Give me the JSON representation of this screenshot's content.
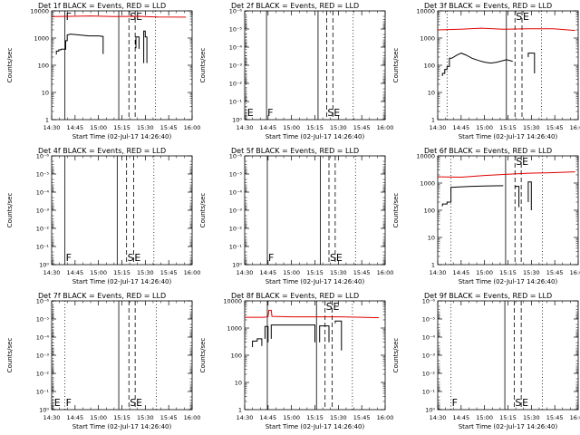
{
  "figure": {
    "xtick_labels": [
      "14:30",
      "14:45",
      "15:00",
      "15:15",
      "15:30",
      "15:45",
      "16:00"
    ],
    "xlabel": "Start Time (02-Jul-17 14:26:40)",
    "ylabel": "Counts/sec",
    "colors": {
      "events": "#000000",
      "lld": "#e00000",
      "axes": "#000000",
      "background": "#ffffff"
    }
  },
  "chart_data": [
    {
      "type": "line",
      "title": "Det 1f BLACK = Events, RED = LLD",
      "x_unit": "minutes after 14:30",
      "xlim": [
        0,
        90
      ],
      "yscale": "log",
      "ylim": [
        1,
        10000
      ],
      "ytick_labels": [
        "1",
        "10",
        "100",
        "1000",
        "10000"
      ],
      "series": [
        {
          "name": "LLD",
          "color": "#e00000",
          "points": [
            [
              0,
              6200
            ],
            [
              12,
              6300
            ],
            [
              25,
              6500
            ],
            [
              40,
              6200
            ],
            [
              55,
              6300
            ],
            [
              68,
              6000
            ],
            [
              86,
              5900
            ]
          ]
        },
        {
          "name": "Events",
          "color": "#000000",
          "segments": [
            [
              [
                3,
                250
              ],
              [
                3,
                330
              ],
              [
                4.5,
                330
              ],
              [
                4.5,
                370
              ],
              [
                6,
                370
              ],
              [
                6,
                390
              ],
              [
                9,
                390
              ],
              [
                9,
                800
              ],
              [
                10,
                800
              ],
              [
                10,
                1300
              ],
              [
                12,
                1400
              ],
              [
                18,
                1300
              ],
              [
                24,
                1200
              ],
              [
                30,
                1200
              ],
              [
                33,
                1150
              ],
              [
                33,
                260
              ]
            ],
            [
              [
                54,
                420
              ],
              [
                54,
                1100
              ],
              [
                56,
                1100
              ],
              [
                56,
                400
              ]
            ],
            [
              [
                59,
                120
              ],
              [
                59,
                1800
              ],
              [
                60,
                1800
              ],
              [
                60,
                1100
              ],
              [
                61,
                1100
              ],
              [
                61,
                120
              ]
            ]
          ]
        }
      ],
      "vlines": [
        {
          "x": 8.5,
          "style": "solid",
          "label": "F"
        },
        {
          "x": 43,
          "style": "solid",
          "label": ""
        },
        {
          "x": 49.5,
          "style": "dashed",
          "label": "S"
        },
        {
          "x": 53.5,
          "style": "dashed",
          "label": "E"
        },
        {
          "x": 66.5,
          "style": "dotted",
          "label": ""
        }
      ]
    },
    {
      "type": "line",
      "title": "Det 2f BLACK = Events, RED = LLD",
      "x_unit": "minutes after 14:30",
      "xlim": [
        0,
        90
      ],
      "yscale": "log",
      "ylim": [
        1,
        1e-06
      ],
      "ytick_labels": [
        "10⁰",
        "10⁻¹",
        "10⁻²",
        "10⁻³",
        "10⁻⁴",
        "10⁻⁵",
        "10⁻⁶"
      ],
      "series": [],
      "vlines": [
        {
          "x": 1,
          "style": "dotted",
          "label": "E"
        },
        {
          "x": 14,
          "style": "solid",
          "label": "F"
        },
        {
          "x": 47,
          "style": "solid",
          "label": ""
        },
        {
          "x": 52.5,
          "style": "dashed",
          "label": "S"
        },
        {
          "x": 56.5,
          "style": "dashed",
          "label": "E"
        },
        {
          "x": 69.5,
          "style": "dotted",
          "label": ""
        }
      ]
    },
    {
      "type": "line",
      "title": "Det 3f BLACK = Events, RED = LLD",
      "x_unit": "minutes after 14:30",
      "xlim": [
        0,
        90
      ],
      "yscale": "log",
      "ylim": [
        1,
        10000
      ],
      "ytick_labels": [
        "1",
        "10",
        "100",
        "1000",
        "10000"
      ],
      "series": [
        {
          "name": "LLD",
          "color": "#e00000",
          "points": [
            [
              0,
              2000
            ],
            [
              14,
              2100
            ],
            [
              28,
              2300
            ],
            [
              42,
              2100
            ],
            [
              58,
              2200
            ],
            [
              74,
              2200
            ],
            [
              88,
              1900
            ]
          ]
        },
        {
          "name": "Events",
          "color": "#000000",
          "segments": [
            [
              [
                3,
                40
              ],
              [
                3,
                50
              ],
              [
                4.5,
                50
              ],
              [
                4.5,
                70
              ],
              [
                6,
                70
              ],
              [
                6,
                90
              ],
              [
                7.5,
                90
              ],
              [
                7.5,
                180
              ],
              [
                9,
                180
              ],
              [
                12,
                230
              ],
              [
                15,
                280
              ],
              [
                18,
                240
              ],
              [
                22,
                180
              ],
              [
                26,
                150
              ],
              [
                30,
                130
              ],
              [
                34,
                120
              ],
              [
                38,
                130
              ],
              [
                44,
                160
              ],
              [
                48,
                140
              ]
            ],
            [
              [
                58,
                200
              ],
              [
                58,
                280
              ],
              [
                62,
                280
              ],
              [
                62,
                50
              ]
            ]
          ]
        }
      ],
      "vlines": [
        {
          "x": 6,
          "style": "dotted",
          "label": ""
        },
        {
          "x": 44,
          "style": "solid",
          "label": ""
        },
        {
          "x": 49.5,
          "style": "dashed",
          "label": "S"
        },
        {
          "x": 54,
          "style": "dashed",
          "label": "E"
        },
        {
          "x": 66.5,
          "style": "dotted",
          "label": ""
        }
      ]
    },
    {
      "type": "line",
      "title": "Det 4f BLACK = Events, RED = LLD",
      "x_unit": "minutes after 14:30",
      "xlim": [
        0,
        90
      ],
      "yscale": "log",
      "ylim": [
        1,
        1e-06
      ],
      "ytick_labels": [
        "10⁰",
        "10⁻¹",
        "10⁻²",
        "10⁻³",
        "10⁻⁴",
        "10⁻⁵",
        "10⁻⁶"
      ],
      "series": [],
      "vlines": [
        {
          "x": 8.5,
          "style": "solid",
          "label": "F"
        },
        {
          "x": 42,
          "style": "solid",
          "label": ""
        },
        {
          "x": 48,
          "style": "dashed",
          "label": "S"
        },
        {
          "x": 52.5,
          "style": "dashed",
          "label": "E"
        },
        {
          "x": 65.5,
          "style": "dotted",
          "label": ""
        }
      ]
    },
    {
      "type": "line",
      "title": "Det 5f BLACK = Events, RED = LLD",
      "x_unit": "minutes after 14:30",
      "xlim": [
        0,
        90
      ],
      "yscale": "log",
      "ylim": [
        1,
        1e-06
      ],
      "ytick_labels": [
        "10⁰",
        "10⁻¹",
        "10⁻²",
        "10⁻³",
        "10⁻⁴",
        "10⁻⁵",
        "10⁻⁶"
      ],
      "series": [],
      "vlines": [
        {
          "x": 14.5,
          "style": "solid",
          "label": "F"
        },
        {
          "x": 48.5,
          "style": "solid",
          "label": ""
        },
        {
          "x": 54,
          "style": "dashed",
          "label": "S"
        },
        {
          "x": 58,
          "style": "dashed",
          "label": "E"
        },
        {
          "x": 71,
          "style": "dotted",
          "label": ""
        }
      ]
    },
    {
      "type": "line",
      "title": "Det 6f BLACK = Events, RED = LLD",
      "x_unit": "minutes after 14:30",
      "xlim": [
        0,
        90
      ],
      "yscale": "log",
      "ylim": [
        1,
        10000
      ],
      "ytick_labels": [
        "1",
        "10",
        "100",
        "1000",
        "10000"
      ],
      "series": [
        {
          "name": "LLD",
          "color": "#e00000",
          "points": [
            [
              0,
              1700
            ],
            [
              15,
              1650
            ],
            [
              30,
              1900
            ],
            [
              45,
              2100
            ],
            [
              58,
              2300
            ],
            [
              72,
              2400
            ],
            [
              88,
              2600
            ]
          ]
        },
        {
          "name": "Events",
          "color": "#000000",
          "segments": [
            [
              [
                3,
                140
              ],
              [
                3,
                170
              ],
              [
                6,
                170
              ],
              [
                6,
                200
              ],
              [
                8.5,
                200
              ],
              [
                8.5,
                700
              ],
              [
                10,
                700
              ],
              [
                20,
                750
              ],
              [
                30,
                780
              ],
              [
                42,
                800
              ]
            ],
            [
              [
                50,
                700
              ],
              [
                50,
                760
              ],
              [
                52,
                760
              ],
              [
                52,
                130
              ]
            ],
            [
              [
                58,
                200
              ],
              [
                58,
                1100
              ],
              [
                60,
                1100
              ],
              [
                60,
                100
              ]
            ]
          ]
        }
      ],
      "vlines": [
        {
          "x": 8.5,
          "style": "dotted",
          "label": ""
        },
        {
          "x": 43.5,
          "style": "solid",
          "label": ""
        },
        {
          "x": 49.5,
          "style": "dashed",
          "label": "S"
        },
        {
          "x": 53.5,
          "style": "dashed",
          "label": "E"
        },
        {
          "x": 67,
          "style": "dotted",
          "label": ""
        }
      ]
    },
    {
      "type": "line",
      "title": "Det 7f BLACK = Events, RED = LLD",
      "x_unit": "minutes after 14:30",
      "xlim": [
        0,
        90
      ],
      "yscale": "log",
      "ylim": [
        1,
        1e-06
      ],
      "ytick_labels": [
        "10⁰",
        "10⁻¹",
        "10⁻²",
        "10⁻³",
        "10⁻⁴",
        "10⁻⁵",
        "10⁻⁶"
      ],
      "series": [],
      "vlines": [
        {
          "x": 1,
          "style": "dotted",
          "label": "E"
        },
        {
          "x": 8.5,
          "style": "dotted",
          "label": "F"
        },
        {
          "x": 43,
          "style": "solid",
          "label": ""
        },
        {
          "x": 49.5,
          "style": "dashed",
          "label": "S"
        },
        {
          "x": 53.5,
          "style": "dashed",
          "label": "E"
        },
        {
          "x": 67,
          "style": "dotted",
          "label": ""
        }
      ]
    },
    {
      "type": "line",
      "title": "Det 8f BLACK = Events, RED = LLD",
      "x_unit": "minutes after 14:30",
      "xlim": [
        0,
        90
      ],
      "yscale": "log",
      "ylim": [
        1,
        10000
      ],
      "ytick_labels": [
        "1",
        "10",
        "100",
        "1000",
        "10000"
      ],
      "series": [
        {
          "name": "LLD",
          "color": "#e00000",
          "points": [
            [
              0,
              2500
            ],
            [
              12,
              2500
            ],
            [
              15,
              2600
            ],
            [
              15.5,
              4500
            ],
            [
              17,
              4500
            ],
            [
              17.5,
              2700
            ],
            [
              30,
              2600
            ],
            [
              45,
              2600
            ],
            [
              60,
              2600
            ],
            [
              75,
              2500
            ],
            [
              86,
              2400
            ]
          ]
        },
        {
          "name": "Events",
          "color": "#000000",
          "segments": [
            [
              [
                5,
                200
              ],
              [
                5,
                330
              ],
              [
                8,
                330
              ],
              [
                8,
                400
              ],
              [
                11,
                400
              ],
              [
                11,
                220
              ]
            ],
            [
              [
                13,
                400
              ],
              [
                13,
                1150
              ],
              [
                15,
                1150
              ],
              [
                15,
                300
              ]
            ],
            [
              [
                17,
                400
              ],
              [
                17,
                1300
              ],
              [
                30,
                1300
              ],
              [
                45,
                1300
              ],
              [
                45,
                300
              ]
            ],
            [
              [
                48,
                300
              ],
              [
                48,
                1200
              ],
              [
                54,
                1200
              ],
              [
                54,
                300
              ]
            ],
            [
              [
                58,
                1500
              ],
              [
                58,
                1800
              ],
              [
                62,
                1800
              ],
              [
                62,
                150
              ]
            ]
          ]
        }
      ],
      "vlines": [
        {
          "x": 14.5,
          "style": "solid",
          "label": ""
        },
        {
          "x": 46,
          "style": "solid",
          "label": ""
        },
        {
          "x": 51.5,
          "style": "dashed",
          "label": "S"
        },
        {
          "x": 56,
          "style": "dashed",
          "label": "E"
        },
        {
          "x": 69,
          "style": "dotted",
          "label": ""
        }
      ]
    },
    {
      "type": "line",
      "title": "Det 9f BLACK = Events, RED = LLD",
      "x_unit": "minutes after 14:30",
      "xlim": [
        0,
        90
      ],
      "yscale": "log",
      "ylim": [
        1,
        1e-06
      ],
      "ytick_labels": [
        "10⁰",
        "10⁻¹",
        "10⁻²",
        "10⁻³",
        "10⁻⁴",
        "10⁻⁵",
        "10⁻⁶"
      ],
      "series": [],
      "vlines": [
        {
          "x": 8.5,
          "style": "dotted",
          "label": "F"
        },
        {
          "x": 43,
          "style": "solid",
          "label": ""
        },
        {
          "x": 49,
          "style": "dashed",
          "label": "S"
        },
        {
          "x": 53.5,
          "style": "dashed",
          "label": "E"
        },
        {
          "x": 67,
          "style": "dotted",
          "label": ""
        }
      ]
    }
  ]
}
